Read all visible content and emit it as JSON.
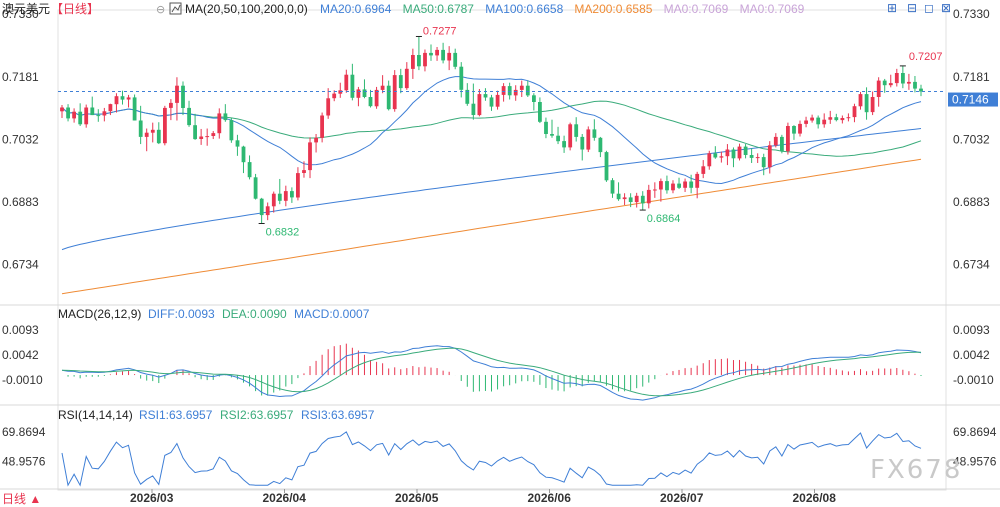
{
  "header": {
    "symbol": "澳元美元",
    "period": "【日线】",
    "ma_label": "MA(20,50,100,200,0,0)",
    "ma_values": [
      {
        "label": "MA20:0.6964",
        "color": "#3f7fd6"
      },
      {
        "label": "MA50:0.6787",
        "color": "#3aab7b"
      },
      {
        "label": "MA100:0.6658",
        "color": "#3f7fd6"
      },
      {
        "label": "MA200:0.6585",
        "color": "#ef8b35"
      },
      {
        "label": "MA0:0.7069",
        "color": "#c9a4d8"
      },
      {
        "label": "MA0:0.7069",
        "color": "#c9a4d8"
      }
    ]
  },
  "toolbar_icons": [
    "plus-icon",
    "minus-icon",
    "window-icon",
    "close-icon"
  ],
  "price_axis": {
    "ticks": [
      "0.7330",
      "0.7181",
      "0.7032",
      "0.6883",
      "0.6734"
    ],
    "tick_values": [
      0.733,
      0.7181,
      0.7032,
      0.6883,
      0.6734
    ],
    "current_price": "0.7146",
    "current_value": 0.7146
  },
  "annotations": {
    "high": "0.7277",
    "low": "0.6832",
    "low2": "0.6864",
    "recent_high": "0.7207"
  },
  "macd": {
    "title": "MACD(26,12,9)",
    "diff": "DIFF:0.0093",
    "dea": "DEA:0.0090",
    "macd": "MACD:0.0007",
    "ticks": [
      "0.0093",
      "0.0042",
      "-0.0010"
    ],
    "tick_values": [
      0.0093,
      0.0042,
      -0.001
    ]
  },
  "rsi": {
    "title": "RSI(14,14,14)",
    "rsi1": "RSI1:63.6957",
    "rsi2": "RSI2:63.6957",
    "rsi3": "RSI3:63.6957",
    "ticks": [
      "69.8694",
      "48.9576"
    ],
    "tick_values": [
      69.8694,
      48.9576
    ]
  },
  "date_axis": {
    "labels": [
      "2026/03",
      "2026/04",
      "2026/05",
      "2026/06",
      "2026/07",
      "2026/08"
    ],
    "corner": "日线 ▲"
  },
  "watermark": "FX678",
  "colors": {
    "up": "#e8344f",
    "down": "#2eb872",
    "ma20": "#3f7fd6",
    "ma50": "#3aab7b",
    "ma100": "#3f7fd6",
    "ma200": "#ef8b35",
    "diff": "#3f7fd6",
    "dea": "#3aab7b",
    "rsi": "#3f7fd6",
    "current_bg": "#3f7fd6"
  },
  "chart_data": {
    "type": "candlestick",
    "candles": [
      [
        0.7099,
        0.7114,
        0.7083,
        0.7108
      ],
      [
        0.7108,
        0.7116,
        0.7075,
        0.7082
      ],
      [
        0.7082,
        0.7106,
        0.7072,
        0.7098
      ],
      [
        0.7098,
        0.7118,
        0.7064,
        0.7068
      ],
      [
        0.7068,
        0.7115,
        0.706,
        0.7108
      ],
      [
        0.7108,
        0.7134,
        0.709,
        0.709
      ],
      [
        0.709,
        0.7104,
        0.7074,
        0.7089
      ],
      [
        0.7089,
        0.7107,
        0.7075,
        0.7099
      ],
      [
        0.7099,
        0.7117,
        0.709,
        0.7116
      ],
      [
        0.7116,
        0.7142,
        0.7096,
        0.7135
      ],
      [
        0.7135,
        0.7148,
        0.7115,
        0.7127
      ],
      [
        0.7127,
        0.7138,
        0.7108,
        0.7132
      ],
      [
        0.7132,
        0.7139,
        0.7077,
        0.7077
      ],
      [
        0.7077,
        0.7112,
        0.7021,
        0.7038
      ],
      [
        0.7038,
        0.7058,
        0.7004,
        0.7048
      ],
      [
        0.7048,
        0.7072,
        0.7025,
        0.7055
      ],
      [
        0.7055,
        0.7073,
        0.7021,
        0.7023
      ],
      [
        0.7023,
        0.7112,
        0.7018,
        0.7107
      ],
      [
        0.7107,
        0.7128,
        0.7078,
        0.7119
      ],
      [
        0.7119,
        0.718,
        0.7077,
        0.716
      ],
      [
        0.716,
        0.717,
        0.709,
        0.7107
      ],
      [
        0.7107,
        0.7124,
        0.7062,
        0.7066
      ],
      [
        0.7066,
        0.7093,
        0.7031,
        0.7033
      ],
      [
        0.7033,
        0.7057,
        0.7019,
        0.7039
      ],
      [
        0.7039,
        0.7058,
        0.7017,
        0.704
      ],
      [
        0.704,
        0.7052,
        0.7033,
        0.7047
      ],
      [
        0.7047,
        0.7106,
        0.7034,
        0.7094
      ],
      [
        0.7094,
        0.7116,
        0.7074,
        0.7078
      ],
      [
        0.7078,
        0.7084,
        0.7024,
        0.703
      ],
      [
        0.703,
        0.7043,
        0.6993,
        0.7015
      ],
      [
        0.7015,
        0.7017,
        0.6952,
        0.6978
      ],
      [
        0.6978,
        0.6994,
        0.6937,
        0.6942
      ],
      [
        0.6942,
        0.695,
        0.6889,
        0.6891
      ],
      [
        0.6891,
        0.6893,
        0.6832,
        0.6852
      ],
      [
        0.6852,
        0.6882,
        0.684,
        0.6873
      ],
      [
        0.6873,
        0.6908,
        0.6858,
        0.6903
      ],
      [
        0.6903,
        0.6938,
        0.6878,
        0.6886
      ],
      [
        0.6886,
        0.6922,
        0.6873,
        0.6909
      ],
      [
        0.6909,
        0.6918,
        0.6881,
        0.6894
      ],
      [
        0.6894,
        0.6966,
        0.6887,
        0.6952
      ],
      [
        0.6952,
        0.698,
        0.6941,
        0.6959
      ],
      [
        0.6959,
        0.7037,
        0.694,
        0.7025
      ],
      [
        0.7025,
        0.7045,
        0.7001,
        0.7036
      ],
      [
        0.7036,
        0.7096,
        0.7025,
        0.7089
      ],
      [
        0.7089,
        0.7154,
        0.7081,
        0.713
      ],
      [
        0.713,
        0.7149,
        0.7123,
        0.7141
      ],
      [
        0.7141,
        0.7167,
        0.7131,
        0.7149
      ],
      [
        0.7149,
        0.7198,
        0.7143,
        0.7186
      ],
      [
        0.7186,
        0.7212,
        0.7125,
        0.7131
      ],
      [
        0.7131,
        0.7157,
        0.7111,
        0.7151
      ],
      [
        0.7151,
        0.7175,
        0.713,
        0.7133
      ],
      [
        0.7133,
        0.715,
        0.7108,
        0.7111
      ],
      [
        0.7111,
        0.7157,
        0.7105,
        0.715
      ],
      [
        0.715,
        0.7185,
        0.7142,
        0.716
      ],
      [
        0.716,
        0.7172,
        0.7101,
        0.7104
      ],
      [
        0.7104,
        0.7197,
        0.7098,
        0.7185
      ],
      [
        0.7185,
        0.72,
        0.7142,
        0.7154
      ],
      [
        0.7154,
        0.7216,
        0.715,
        0.72
      ],
      [
        0.72,
        0.7248,
        0.7176,
        0.7233
      ],
      [
        0.7233,
        0.7277,
        0.7197,
        0.7206
      ],
      [
        0.7206,
        0.7246,
        0.7194,
        0.7238
      ],
      [
        0.7238,
        0.7258,
        0.7219,
        0.7232
      ],
      [
        0.7232,
        0.7252,
        0.7219,
        0.7245
      ],
      [
        0.7245,
        0.7262,
        0.7213,
        0.722
      ],
      [
        0.722,
        0.7254,
        0.7197,
        0.7238
      ],
      [
        0.7238,
        0.7248,
        0.7199,
        0.7205
      ],
      [
        0.7205,
        0.7216,
        0.7132,
        0.715
      ],
      [
        0.715,
        0.7166,
        0.7112,
        0.7117
      ],
      [
        0.7117,
        0.7165,
        0.7079,
        0.709
      ],
      [
        0.709,
        0.7152,
        0.7087,
        0.714
      ],
      [
        0.714,
        0.7154,
        0.7124,
        0.7132
      ],
      [
        0.7132,
        0.7138,
        0.71,
        0.711
      ],
      [
        0.711,
        0.7148,
        0.7103,
        0.7138
      ],
      [
        0.7138,
        0.7166,
        0.7122,
        0.7159
      ],
      [
        0.7159,
        0.7167,
        0.7127,
        0.7137
      ],
      [
        0.7137,
        0.7161,
        0.7124,
        0.715
      ],
      [
        0.715,
        0.7172,
        0.7133,
        0.716
      ],
      [
        0.716,
        0.7172,
        0.7133,
        0.7137
      ],
      [
        0.7137,
        0.7142,
        0.7101,
        0.7121
      ],
      [
        0.7121,
        0.7132,
        0.7071,
        0.7074
      ],
      [
        0.7074,
        0.7084,
        0.7035,
        0.7045
      ],
      [
        0.7045,
        0.7079,
        0.7036,
        0.7041
      ],
      [
        0.7041,
        0.7062,
        0.7021,
        0.7028
      ],
      [
        0.7028,
        0.7041,
        0.7,
        0.7013
      ],
      [
        0.7013,
        0.7072,
        0.7006,
        0.7068
      ],
      [
        0.7068,
        0.7085,
        0.7027,
        0.7038
      ],
      [
        0.7038,
        0.7045,
        0.6982,
        0.7008
      ],
      [
        0.7008,
        0.7063,
        0.7002,
        0.7056
      ],
      [
        0.7056,
        0.708,
        0.7029,
        0.7036
      ],
      [
        0.7036,
        0.7038,
        0.699,
        0.7002
      ],
      [
        0.7002,
        0.7005,
        0.6931,
        0.6935
      ],
      [
        0.6935,
        0.694,
        0.6893,
        0.6903
      ],
      [
        0.6903,
        0.693,
        0.6886,
        0.689
      ],
      [
        0.689,
        0.6904,
        0.6876,
        0.6894
      ],
      [
        0.6894,
        0.6904,
        0.6871,
        0.6883
      ],
      [
        0.6883,
        0.6905,
        0.687,
        0.6898
      ],
      [
        0.6898,
        0.6909,
        0.6864,
        0.688
      ],
      [
        0.688,
        0.6924,
        0.6868,
        0.6912
      ],
      [
        0.6912,
        0.693,
        0.6893,
        0.6913
      ],
      [
        0.6913,
        0.6939,
        0.6884,
        0.6933
      ],
      [
        0.6933,
        0.6946,
        0.6903,
        0.6911
      ],
      [
        0.6911,
        0.6935,
        0.6904,
        0.6927
      ],
      [
        0.6927,
        0.6941,
        0.6914,
        0.6917
      ],
      [
        0.6917,
        0.6939,
        0.6907,
        0.6932
      ],
      [
        0.6932,
        0.6948,
        0.6904,
        0.6917
      ],
      [
        0.6917,
        0.6955,
        0.6892,
        0.695
      ],
      [
        0.695,
        0.6983,
        0.694,
        0.6968
      ],
      [
        0.6968,
        0.7005,
        0.696,
        0.6999
      ],
      [
        0.6999,
        0.7016,
        0.6986,
        0.6989
      ],
      [
        0.6989,
        0.7003,
        0.6977,
        0.6992
      ],
      [
        0.6992,
        0.7021,
        0.6971,
        0.7008
      ],
      [
        0.7008,
        0.7013,
        0.6966,
        0.6987
      ],
      [
        0.6987,
        0.7022,
        0.6982,
        0.7015
      ],
      [
        0.7015,
        0.7021,
        0.6987,
        0.6995
      ],
      [
        0.6995,
        0.7011,
        0.6976,
        0.6988
      ],
      [
        0.6988,
        0.6999,
        0.6976,
        0.699
      ],
      [
        0.699,
        0.6998,
        0.6947,
        0.6966
      ],
      [
        0.6966,
        0.7028,
        0.6951,
        0.7018
      ],
      [
        0.7018,
        0.7047,
        0.7013,
        0.7038
      ],
      [
        0.7038,
        0.7043,
        0.6999,
        0.7004
      ],
      [
        0.7004,
        0.7072,
        0.6996,
        0.7064
      ],
      [
        0.7064,
        0.7066,
        0.7031,
        0.7046
      ],
      [
        0.7046,
        0.7077,
        0.7039,
        0.7069
      ],
      [
        0.7069,
        0.7086,
        0.7061,
        0.7077
      ],
      [
        0.7077,
        0.7091,
        0.7072,
        0.7084
      ],
      [
        0.7084,
        0.7089,
        0.7058,
        0.7068
      ],
      [
        0.7068,
        0.7094,
        0.706,
        0.7079
      ],
      [
        0.7079,
        0.71,
        0.7069,
        0.7085
      ],
      [
        0.7085,
        0.7093,
        0.7075,
        0.7078
      ],
      [
        0.7078,
        0.7089,
        0.707,
        0.7083
      ],
      [
        0.7083,
        0.7094,
        0.7075,
        0.7085
      ],
      [
        0.7085,
        0.7117,
        0.7073,
        0.7111
      ],
      [
        0.7111,
        0.7145,
        0.7103,
        0.714
      ],
      [
        0.714,
        0.7156,
        0.7079,
        0.7097
      ],
      [
        0.7097,
        0.7146,
        0.709,
        0.7133
      ],
      [
        0.7133,
        0.718,
        0.711,
        0.7172
      ],
      [
        0.7172,
        0.7176,
        0.7143,
        0.7161
      ],
      [
        0.7161,
        0.7186,
        0.7156,
        0.7166
      ],
      [
        0.7166,
        0.72,
        0.7158,
        0.719
      ],
      [
        0.719,
        0.7207,
        0.7154,
        0.7165
      ],
      [
        0.7165,
        0.7188,
        0.715,
        0.7169
      ],
      [
        0.7169,
        0.7183,
        0.7144,
        0.7153
      ],
      [
        0.7153,
        0.7162,
        0.7135,
        0.7146
      ]
    ],
    "ylim": [
      0.665,
      0.734
    ],
    "current_price": 0.7146
  }
}
